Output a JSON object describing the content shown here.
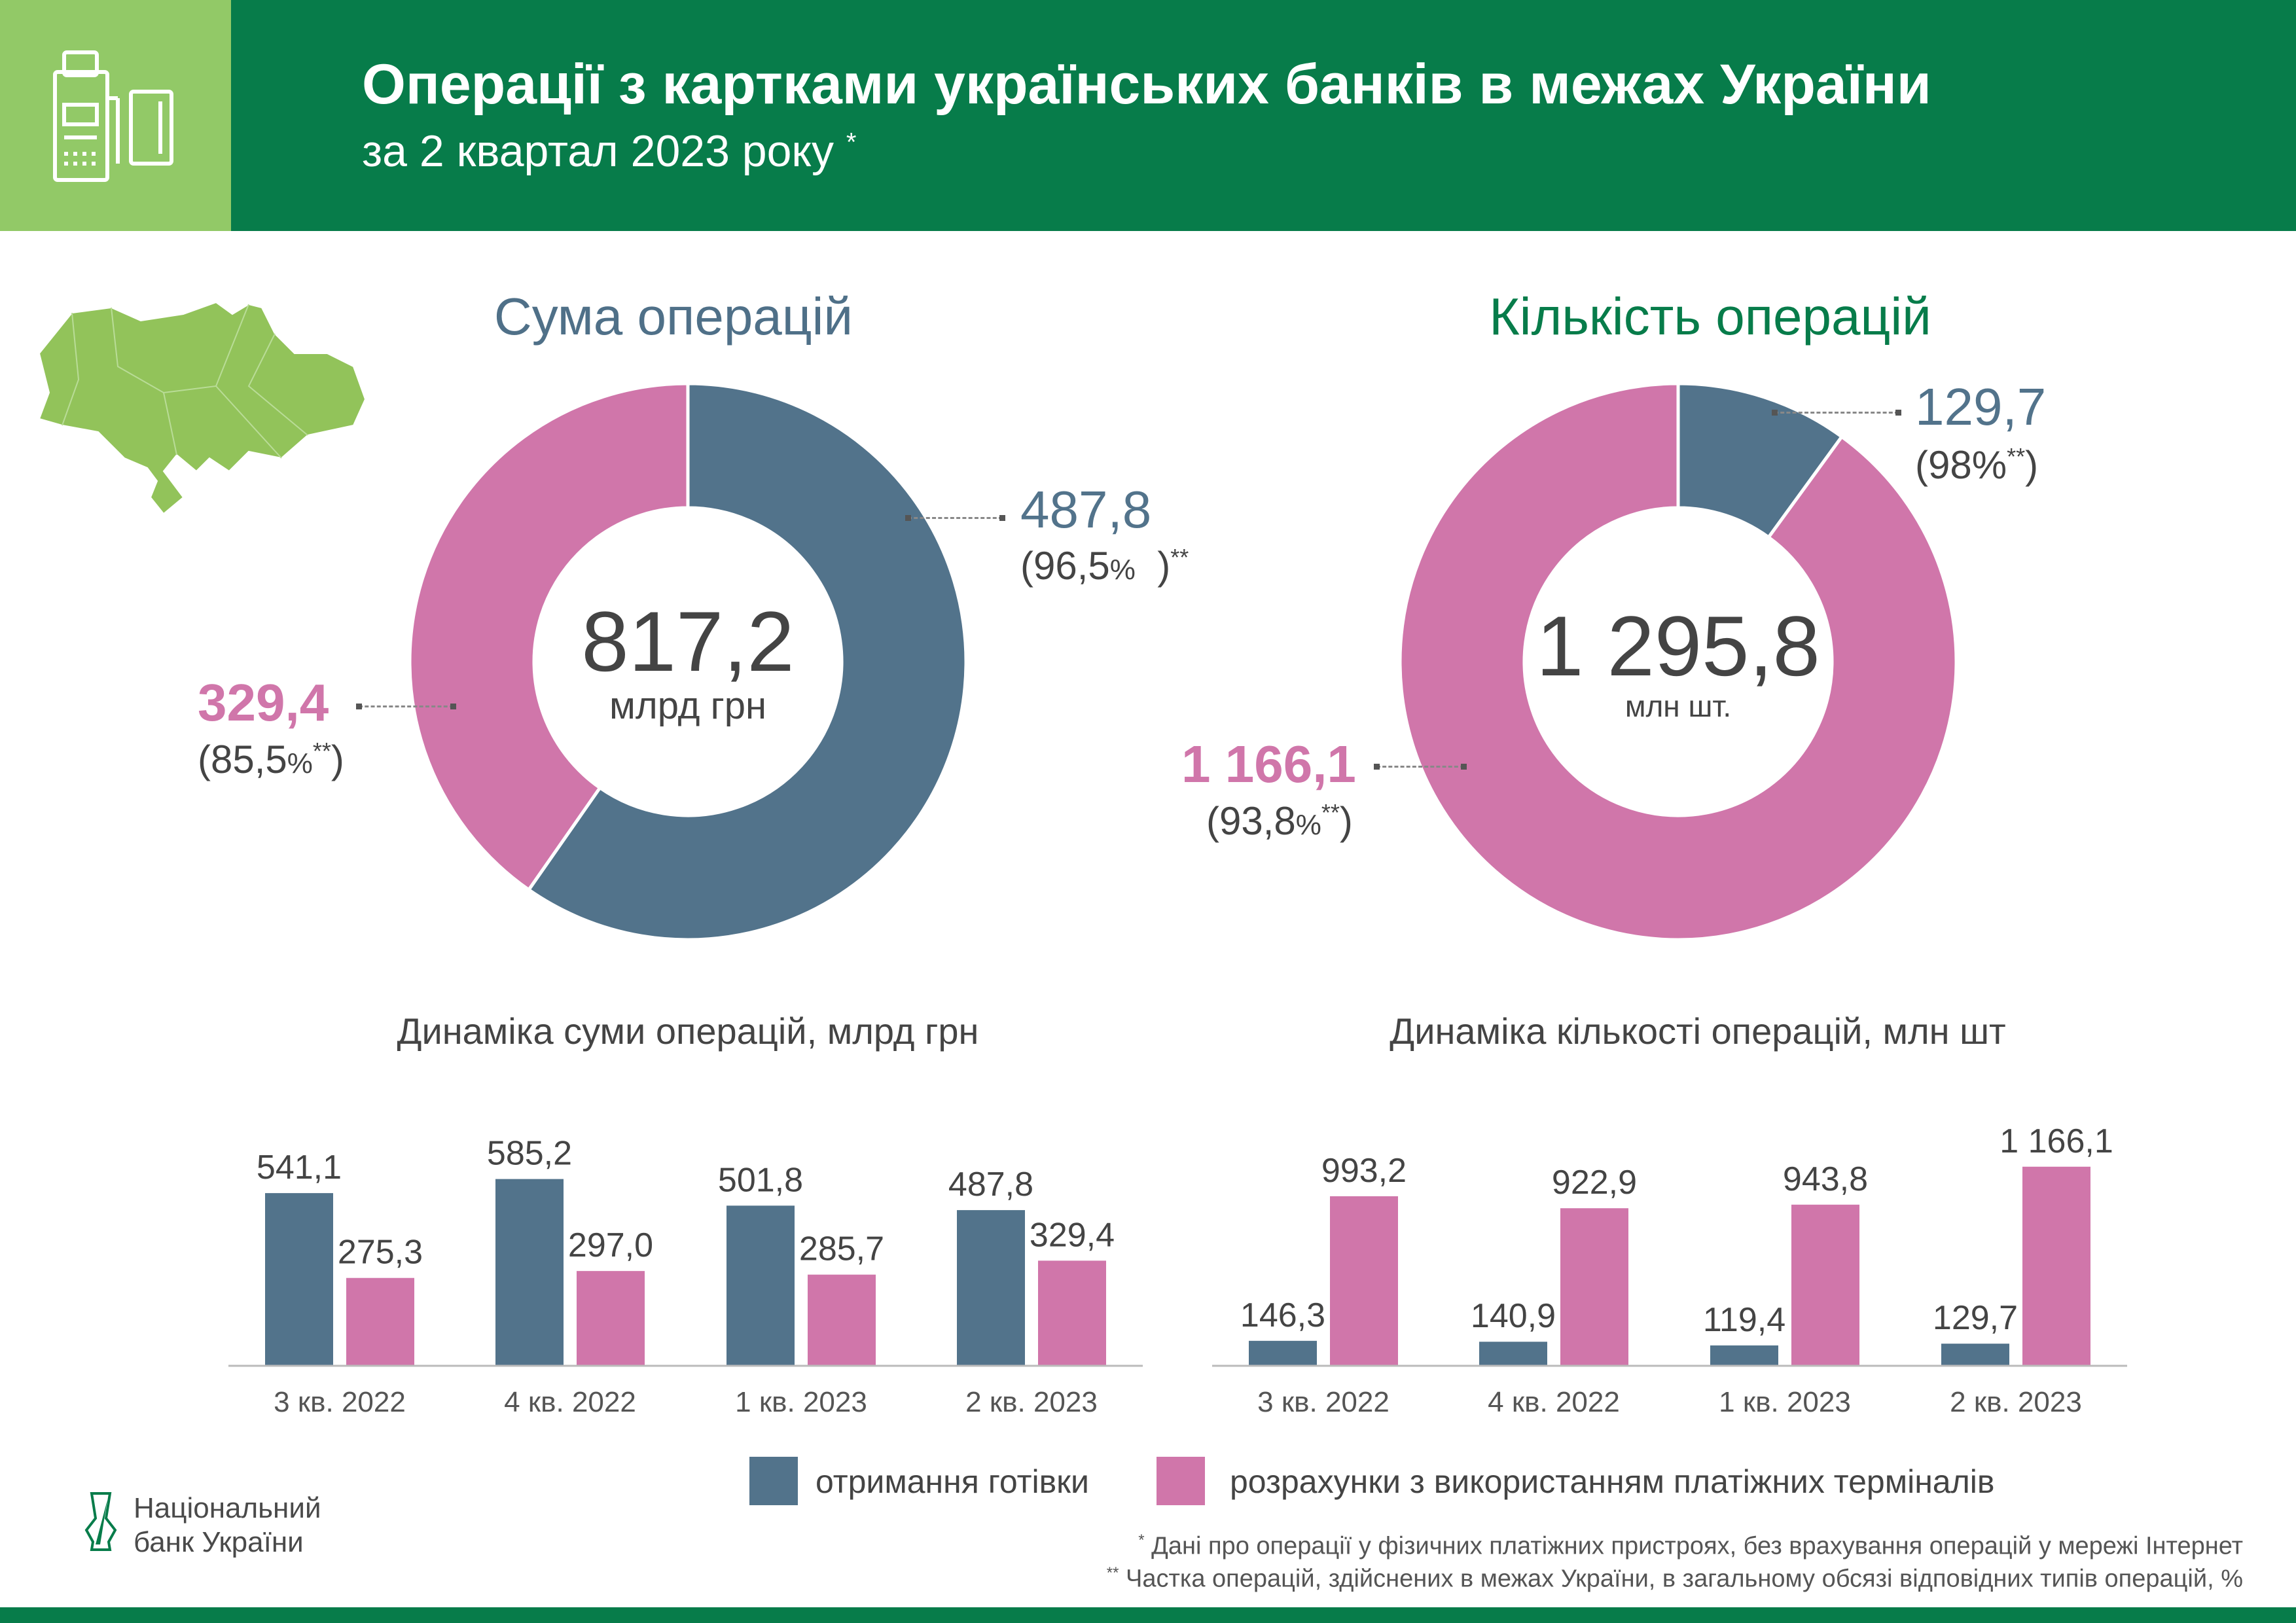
{
  "header": {
    "title": "Операції з картками українських банків в межах України",
    "subtitle": "за 2 квартал 2023 року",
    "subtitle_mark": "*",
    "icon": "pos-terminal-card-icon"
  },
  "colors": {
    "header_green": "#077c4a",
    "header_light": "#92c967",
    "cash": "#52738b",
    "terminals": "#d076aa",
    "map": "#92c35a"
  },
  "sum": {
    "heading": "Сума операцій",
    "total": "817,2",
    "unit": "млрд грн",
    "cash_value": "487,8",
    "cash_share": "(96,5",
    "cash_share_pct": "%",
    "cash_share_end": ")",
    "cash_mark": "**",
    "terminal_value": "329,4",
    "terminal_share": "(85,5",
    "terminal_share_pct": "%",
    "terminal_mark": "**",
    "terminal_share_end": ")"
  },
  "count": {
    "heading": "Кількість операцій",
    "total": "1 295,8",
    "unit": "млн шт.",
    "cash_value": "129,7",
    "cash_share": "(98%",
    "cash_mark": "**",
    "cash_share_end": ")",
    "terminal_value": "1 166,1",
    "terminal_share": "(93,8",
    "terminal_share_pct": "%",
    "terminal_mark": "**",
    "terminal_share_end": ")"
  },
  "chart_data": [
    {
      "type": "pie",
      "title": "Сума операцій",
      "donut": true,
      "center_label": "817,2 млрд грн",
      "slices": [
        {
          "name": "отримання готівки",
          "value": 487.8,
          "color": "#52738b"
        },
        {
          "name": "розрахунки з використанням платіжних терміналів",
          "value": 329.4,
          "color": "#d076aa"
        }
      ]
    },
    {
      "type": "pie",
      "title": "Кількість операцій",
      "donut": true,
      "center_label": "1 295,8 млн шт.",
      "slices": [
        {
          "name": "отримання готівки",
          "value": 129.7,
          "color": "#52738b"
        },
        {
          "name": "розрахунки з використанням платіжних терміналів",
          "value": 1166.1,
          "color": "#d076aa"
        }
      ]
    },
    {
      "type": "bar",
      "title": "Динаміка суми операцій, млрд грн",
      "categories": [
        "3 кв. 2022",
        "4 кв. 2022",
        "1 кв. 2023",
        "2 кв. 2023"
      ],
      "series": [
        {
          "name": "отримання готівки",
          "values": [
            541.1,
            585.2,
            501.8,
            487.8
          ],
          "labels": [
            "541,1",
            "585,2",
            "501,8",
            "487,8"
          ]
        },
        {
          "name": "розрахунки з використанням платіжних терміналів",
          "values": [
            275.3,
            297.0,
            285.7,
            329.4
          ],
          "labels": [
            "275,3",
            "297,0",
            "285,7",
            "329,4"
          ]
        }
      ],
      "grid": false
    },
    {
      "type": "bar",
      "title": "Динаміка кількості операцій, млн шт",
      "categories": [
        "3 кв. 2022",
        "4 кв. 2022",
        "1 кв. 2023",
        "2 кв. 2023"
      ],
      "series": [
        {
          "name": "отримання готівки",
          "values": [
            146.3,
            140.9,
            119.4,
            129.7
          ],
          "labels": [
            "146,3",
            "140,9",
            "119,4",
            "129,7"
          ]
        },
        {
          "name": "розрахунки з використанням платіжних терміналів",
          "values": [
            993.2,
            922.9,
            943.8,
            1166.1
          ],
          "labels": [
            "993,2",
            "922,9",
            "943,8",
            "1 166,1"
          ]
        }
      ],
      "grid": false
    }
  ],
  "legend": {
    "cash": "отримання готівки",
    "terminals": "розрахунки з використанням платіжних терміналів",
    "placement": "bottom"
  },
  "logo": {
    "line1": "Національний",
    "line2": "банк України"
  },
  "footnotes": {
    "mark1": "*",
    "note1": "Дані про операції у фізичних платіжних пристроях, без врахування операцій у мережі Інтернет",
    "mark2": "**",
    "note2": "Частка операцій, здійснених в межах України, в загальному обсязі відповідних типів операцій, %"
  }
}
